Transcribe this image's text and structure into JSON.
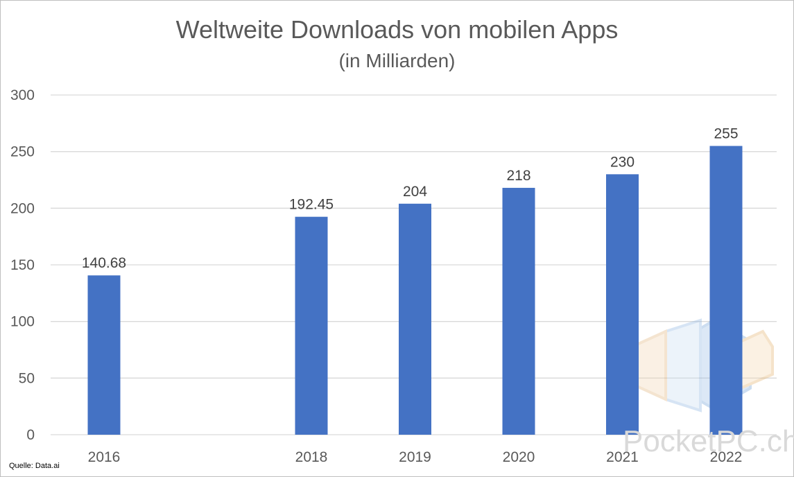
{
  "chart_data": {
    "type": "bar",
    "title": "Weltweite Downloads von mobilen Apps",
    "subtitle": "(in Milliarden)",
    "categories": [
      "2016",
      "2018",
      "2019",
      "2020",
      "2021",
      "2022"
    ],
    "values": [
      140.68,
      192.45,
      204,
      218,
      230,
      255
    ],
    "value_labels": [
      "140.68",
      "192.45",
      "204",
      "218",
      "230",
      "255"
    ],
    "ylim": [
      0,
      300
    ],
    "yticks": [
      "0",
      "50",
      "100",
      "150",
      "200",
      "250",
      "300"
    ],
    "grid": true,
    "legend": "none",
    "bar_color": "#4472C4"
  },
  "source": "Quelle: Data.ai",
  "watermark": "PocketPC.ch"
}
